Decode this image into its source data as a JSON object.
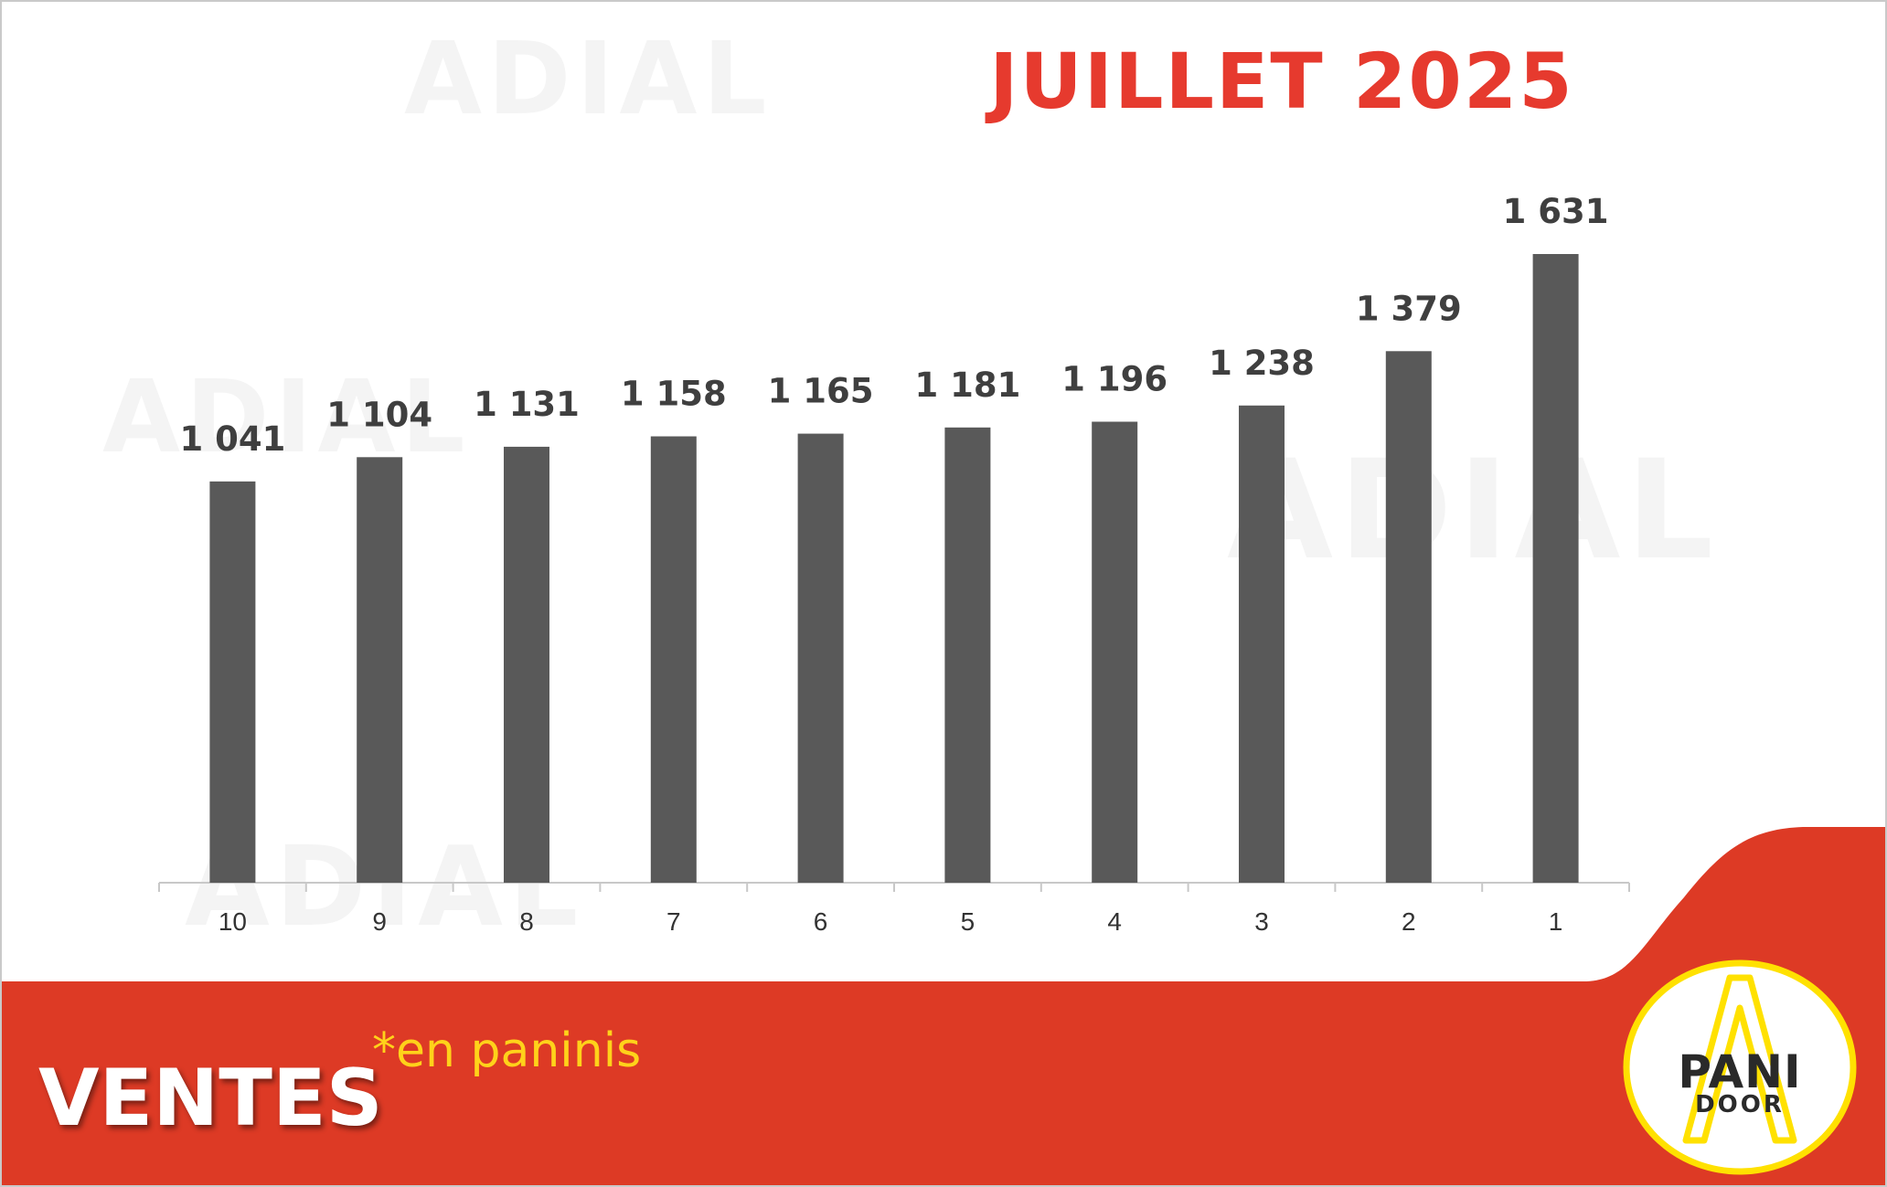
{
  "title": "JUILLET 2025",
  "footer": {
    "label": "VENTES",
    "unit_note": "*en paninis",
    "bar_color": "#dd3a25",
    "unit_color": "#ffd21a"
  },
  "logo": {
    "line1": "PANI",
    "line2": "DOOR",
    "ring_color": "#ffe100"
  },
  "watermark_text": "ADIAL",
  "chart_data": {
    "type": "bar",
    "title": "JUILLET 2025",
    "categories": [
      "10",
      "9",
      "8",
      "7",
      "6",
      "5",
      "4",
      "3",
      "2",
      "1"
    ],
    "values": [
      1041,
      1104,
      1131,
      1158,
      1165,
      1181,
      1196,
      1238,
      1379,
      1631
    ],
    "value_labels": [
      "1 041",
      "1 104",
      "1 131",
      "1 158",
      "1 165",
      "1 181",
      "1 196",
      "1 238",
      "1 379",
      "1 631"
    ],
    "xlabel": "",
    "ylabel": "",
    "grid": false,
    "bar_color": "#595959"
  }
}
